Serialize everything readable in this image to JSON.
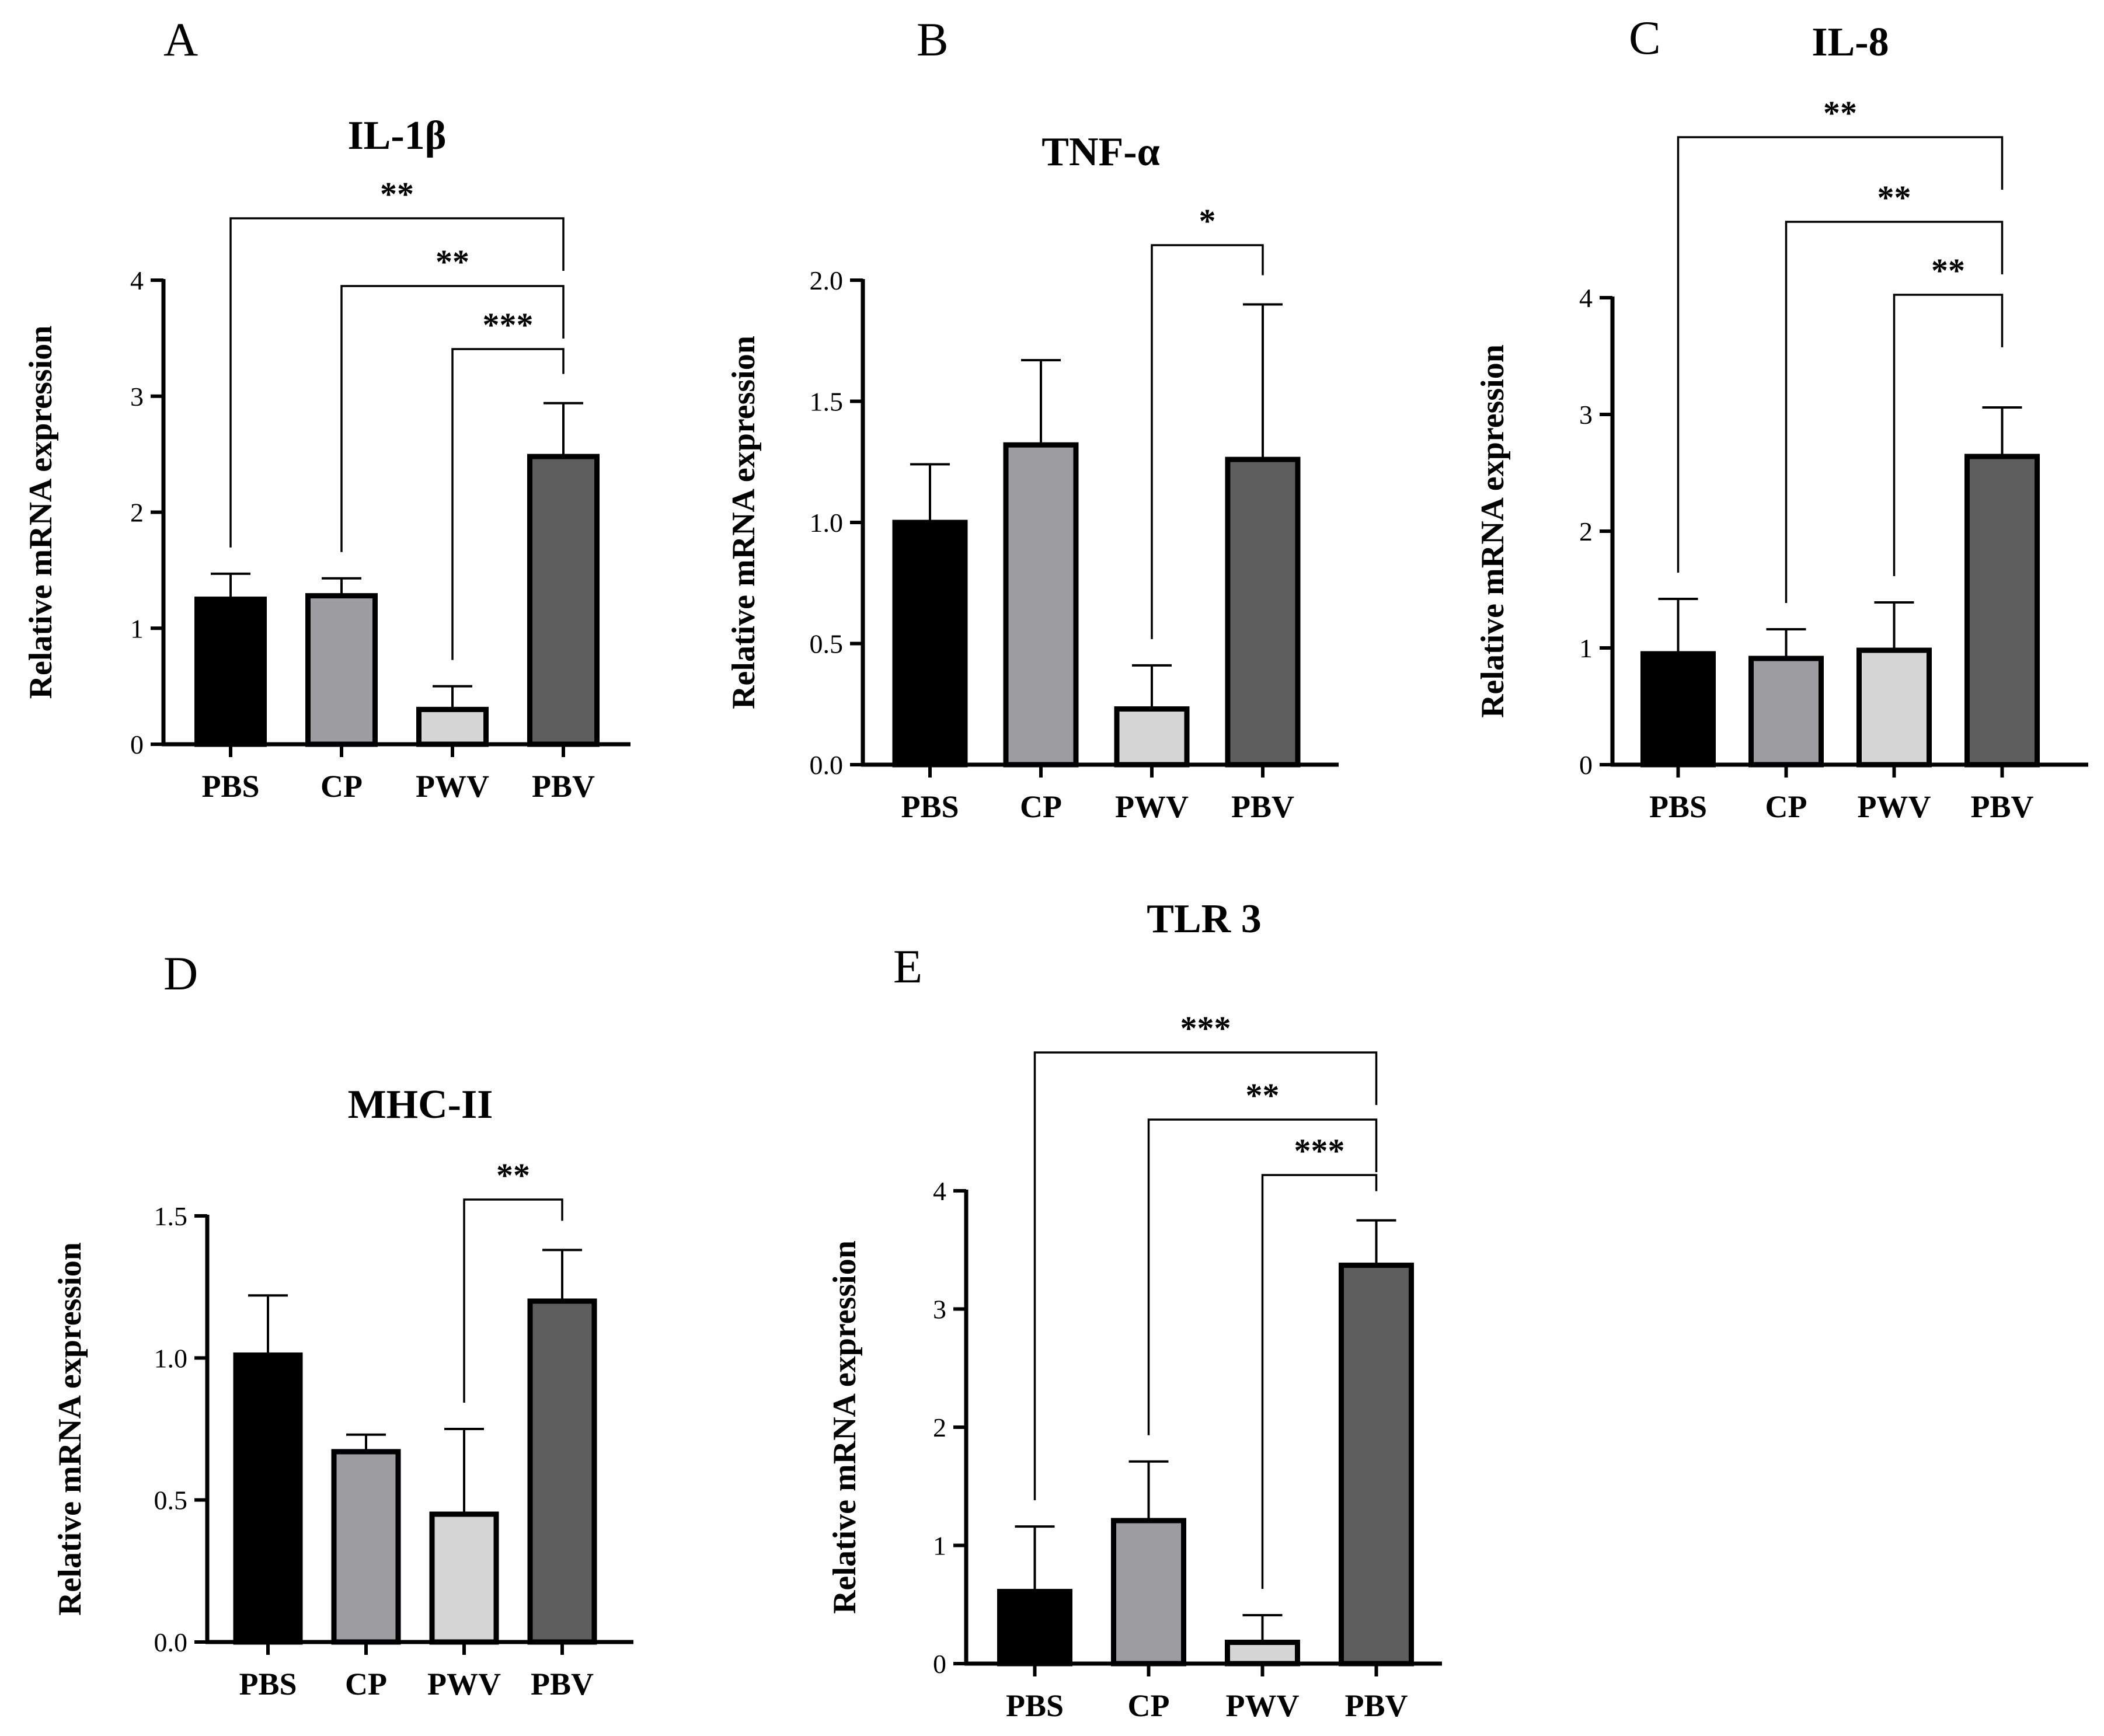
{
  "chart_data": [
    {
      "panel": "A",
      "type": "bar",
      "title": "IL-1β",
      "ylabel": "Relative mRNA expression",
      "xlabel": "",
      "categories": [
        "PBS",
        "CP",
        "PWV",
        "PBV"
      ],
      "values": [
        1.25,
        1.28,
        0.3,
        2.48
      ],
      "errors": [
        0.22,
        0.15,
        0.2,
        0.46
      ],
      "ylim": [
        0,
        4
      ],
      "yticks": [
        "0",
        "1",
        "2",
        "3",
        "4"
      ],
      "significance": [
        {
          "from": "PBS",
          "to": "PBV",
          "label": "**"
        },
        {
          "from": "CP",
          "to": "PBV",
          "label": "**"
        },
        {
          "from": "PWV",
          "to": "PBV",
          "label": "***"
        }
      ]
    },
    {
      "panel": "B",
      "type": "bar",
      "title": "TNF-α",
      "ylabel": "Relative mRNA expression",
      "xlabel": "",
      "categories": [
        "PBS",
        "CP",
        "PWV",
        "PBV"
      ],
      "values": [
        1.0,
        1.32,
        0.23,
        1.26
      ],
      "errors": [
        0.24,
        0.35,
        0.18,
        0.64
      ],
      "ylim": [
        0,
        2
      ],
      "yticks": [
        "0.0",
        "0.5",
        "1.0",
        "1.5",
        "2.0"
      ],
      "significance": [
        {
          "from": "PWV",
          "to": "PBV",
          "label": "*"
        }
      ]
    },
    {
      "panel": "C",
      "type": "bar",
      "title": "IL-8",
      "ylabel": "Relative mRNA expression",
      "xlabel": "",
      "categories": [
        "PBS",
        "CP",
        "PWV",
        "PBV"
      ],
      "values": [
        0.95,
        0.91,
        0.98,
        2.64
      ],
      "errors": [
        0.47,
        0.25,
        0.41,
        0.42
      ],
      "ylim": [
        0,
        4
      ],
      "yticks": [
        "0",
        "1",
        "2",
        "3",
        "4"
      ],
      "significance": [
        {
          "from": "PBS",
          "to": "PBV",
          "label": "**"
        },
        {
          "from": "CP",
          "to": "PBV",
          "label": "**"
        },
        {
          "from": "PWV",
          "to": "PBV",
          "label": "**"
        }
      ]
    },
    {
      "panel": "D",
      "type": "bar",
      "title": "MHC-II",
      "ylabel": "Relative mRNA expression",
      "xlabel": "",
      "categories": [
        "PBS",
        "CP",
        "PWV",
        "PBV"
      ],
      "values": [
        1.01,
        0.67,
        0.45,
        1.2
      ],
      "errors": [
        0.21,
        0.06,
        0.3,
        0.18
      ],
      "ylim": [
        0,
        1.5
      ],
      "yticks": [
        "0.0",
        "0.5",
        "1.0",
        "1.5"
      ],
      "significance": [
        {
          "from": "PWV",
          "to": "PBV",
          "label": "**"
        }
      ]
    },
    {
      "panel": "E",
      "type": "bar",
      "title": "TLR 3",
      "ylabel": "Relative mRNA expression",
      "xlabel": "",
      "categories": [
        "PBS",
        "CP",
        "PWV",
        "PBV"
      ],
      "values": [
        0.61,
        1.21,
        0.18,
        3.37
      ],
      "errors": [
        0.55,
        0.5,
        0.23,
        0.38
      ],
      "ylim": [
        0,
        4
      ],
      "yticks": [
        "0",
        "1",
        "2",
        "3",
        "4"
      ],
      "significance": [
        {
          "from": "PBS",
          "to": "PBV",
          "label": "***"
        },
        {
          "from": "CP",
          "to": "PBV",
          "label": "**"
        },
        {
          "from": "PWV",
          "to": "PBV",
          "label": "***"
        }
      ]
    }
  ],
  "colors": {
    "PBS": "#000000",
    "CP": "#9d9da1",
    "PWV": "#d6d6d6",
    "PBV": "#5e5e5e",
    "axis": "#000000"
  }
}
